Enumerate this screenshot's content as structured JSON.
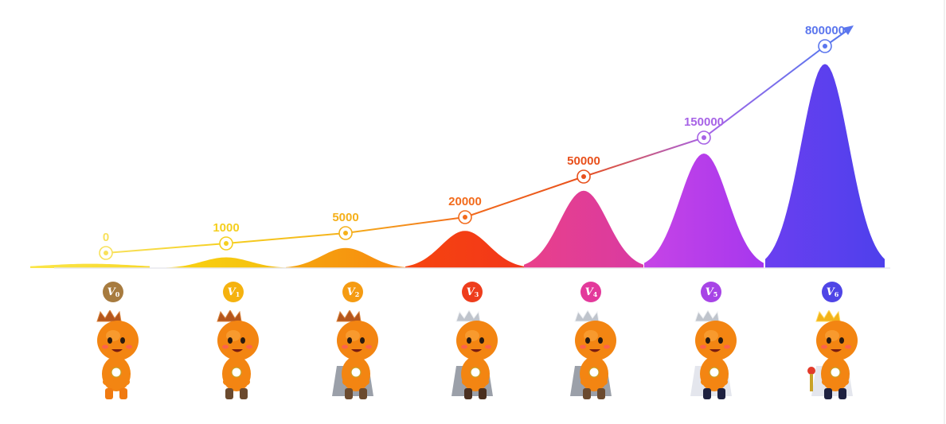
{
  "chart_data": {
    "type": "line",
    "title": "",
    "xlabel": "",
    "ylabel": "",
    "categories": [
      "V0",
      "V1",
      "V2",
      "V3",
      "V4",
      "V5",
      "V6"
    ],
    "values": [
      0,
      1000,
      5000,
      20000,
      50000,
      150000,
      800000
    ],
    "value_labels": [
      "0",
      "1000",
      "5000",
      "20000",
      "50000",
      "150000",
      "800000"
    ],
    "point_colors": [
      "#f8e15b",
      "#f5cf1f",
      "#f5b01a",
      "#f26b1c",
      "#e8501c",
      "#a763e6",
      "#5b76ee"
    ],
    "peak_colors": [
      [
        "#fbe64a",
        "#f8d82a"
      ],
      [
        "#f9d412",
        "#f4bd10"
      ],
      [
        "#f6a60f",
        "#f7890f"
      ],
      [
        "#f6450f",
        "#f2361a"
      ],
      [
        "#e9408a",
        "#d93aa2"
      ],
      [
        "#c644e6",
        "#a637ee"
      ],
      [
        "#6a3ff0",
        "#4e40ec"
      ]
    ],
    "peak_levels": [
      0.06,
      0.15,
      0.28,
      0.52,
      1.08,
      1.6,
      2.85
    ],
    "grid": false,
    "legend": "none"
  },
  "levels": [
    {
      "badge": "V",
      "sub": "0",
      "color": "#a77b3f",
      "crown": "bronze"
    },
    {
      "badge": "V",
      "sub": "1",
      "color": "#f5b20f",
      "crown": "bronze"
    },
    {
      "badge": "V",
      "sub": "2",
      "color": "#f59b12",
      "crown": "bronze"
    },
    {
      "badge": "V",
      "sub": "3",
      "color": "#ee3d1c",
      "crown": "silver"
    },
    {
      "badge": "V",
      "sub": "4",
      "color": "#e3399b",
      "crown": "silver"
    },
    {
      "badge": "V",
      "sub": "5",
      "color": "#a744e6",
      "crown": "silver"
    },
    {
      "badge": "V",
      "sub": "6",
      "color": "#4f45e6",
      "crown": "gold"
    }
  ]
}
